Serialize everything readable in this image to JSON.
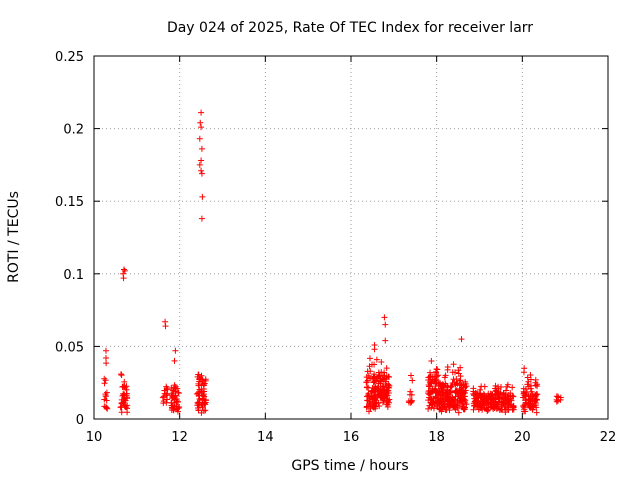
{
  "chart_data": {
    "type": "scatter",
    "title": "Day 024 of 2025, Rate Of TEC Index for receiver larr",
    "xlabel": "GPS time / hours",
    "ylabel": "ROTI / TECUs",
    "xlim": [
      10,
      22
    ],
    "ylim": [
      0,
      0.25
    ],
    "x_ticks": [
      "10",
      "12",
      "14",
      "16",
      "18",
      "20",
      "22"
    ],
    "y_ticks": [
      "0",
      "0.05",
      "0.1",
      "0.15",
      "0.2",
      "0.25"
    ],
    "grid": true,
    "marker": "+",
    "series_color": "#ff0000",
    "series": [
      {
        "name": "ROTI",
        "clusters": [
          {
            "x": [
              10.22,
              10.32
            ],
            "y": [
              0.006,
              0.048
            ],
            "dense": [
              0.006,
              0.03
            ],
            "count": 14
          },
          {
            "x": [
              10.62,
              10.78
            ],
            "y": [
              0.004,
              0.032
            ],
            "dense": [
              0.008,
              0.025
            ],
            "count": 40
          },
          {
            "x": [
              11.6,
              11.72
            ],
            "y": [
              0.007,
              0.025
            ],
            "dense": [
              0.01,
              0.02
            ],
            "count": 16
          },
          {
            "x": [
              11.8,
              12.0
            ],
            "y": [
              0.004,
              0.026
            ],
            "dense": [
              0.006,
              0.022
            ],
            "count": 45
          },
          {
            "x": [
              12.4,
              12.62
            ],
            "y": [
              0.004,
              0.034
            ],
            "dense": [
              0.006,
              0.028
            ],
            "count": 60
          },
          {
            "x": [
              16.35,
              16.62
            ],
            "y": [
              0.005,
              0.045
            ],
            "dense": [
              0.008,
              0.03
            ],
            "count": 80
          },
          {
            "x": [
              16.62,
              16.9
            ],
            "y": [
              0.004,
              0.042
            ],
            "dense": [
              0.008,
              0.03
            ],
            "count": 80
          },
          {
            "x": [
              17.35,
              17.45
            ],
            "y": [
              0.006,
              0.03
            ],
            "dense": [
              0.01,
              0.02
            ],
            "count": 10
          },
          {
            "x": [
              17.8,
              18.0
            ],
            "y": [
              0.004,
              0.04
            ],
            "dense": [
              0.008,
              0.03
            ],
            "count": 70
          },
          {
            "x": [
              18.0,
              18.35
            ],
            "y": [
              0.004,
              0.036
            ],
            "dense": [
              0.006,
              0.025
            ],
            "count": 110
          },
          {
            "x": [
              18.35,
              18.7
            ],
            "y": [
              0.004,
              0.038
            ],
            "dense": [
              0.006,
              0.025
            ],
            "count": 100
          },
          {
            "x": [
              18.85,
              19.3
            ],
            "y": [
              0.004,
              0.024
            ],
            "dense": [
              0.006,
              0.018
            ],
            "count": 100
          },
          {
            "x": [
              19.3,
              19.8
            ],
            "y": [
              0.004,
              0.024
            ],
            "dense": [
              0.006,
              0.018
            ],
            "count": 110
          },
          {
            "x": [
              20.0,
              20.35
            ],
            "y": [
              0.004,
              0.036
            ],
            "dense": [
              0.006,
              0.024
            ],
            "count": 80
          },
          {
            "x": [
              20.8,
              20.92
            ],
            "y": [
              0.005,
              0.018
            ],
            "dense": [
              0.008,
              0.016
            ],
            "count": 8
          }
        ],
        "outliers": [
          {
            "x": 10.28,
            "y": 0.047
          },
          {
            "x": 10.28,
            "y": 0.042
          },
          {
            "x": 10.7,
            "y": 0.103
          },
          {
            "x": 10.72,
            "y": 0.102
          },
          {
            "x": 10.68,
            "y": 0.1
          },
          {
            "x": 10.69,
            "y": 0.097
          },
          {
            "x": 11.66,
            "y": 0.067
          },
          {
            "x": 11.67,
            "y": 0.064
          },
          {
            "x": 11.9,
            "y": 0.047
          },
          {
            "x": 11.88,
            "y": 0.04
          },
          {
            "x": 12.5,
            "y": 0.211
          },
          {
            "x": 12.48,
            "y": 0.204
          },
          {
            "x": 12.5,
            "y": 0.201
          },
          {
            "x": 12.47,
            "y": 0.193
          },
          {
            "x": 12.52,
            "y": 0.186
          },
          {
            "x": 12.5,
            "y": 0.178
          },
          {
            "x": 12.47,
            "y": 0.175
          },
          {
            "x": 12.5,
            "y": 0.171
          },
          {
            "x": 12.52,
            "y": 0.169
          },
          {
            "x": 12.53,
            "y": 0.153
          },
          {
            "x": 12.52,
            "y": 0.138
          },
          {
            "x": 16.55,
            "y": 0.051
          },
          {
            "x": 16.55,
            "y": 0.048
          },
          {
            "x": 16.78,
            "y": 0.07
          },
          {
            "x": 16.8,
            "y": 0.065
          },
          {
            "x": 16.8,
            "y": 0.054
          },
          {
            "x": 17.4,
            "y": 0.03
          },
          {
            "x": 18.58,
            "y": 0.055
          }
        ]
      }
    ]
  }
}
